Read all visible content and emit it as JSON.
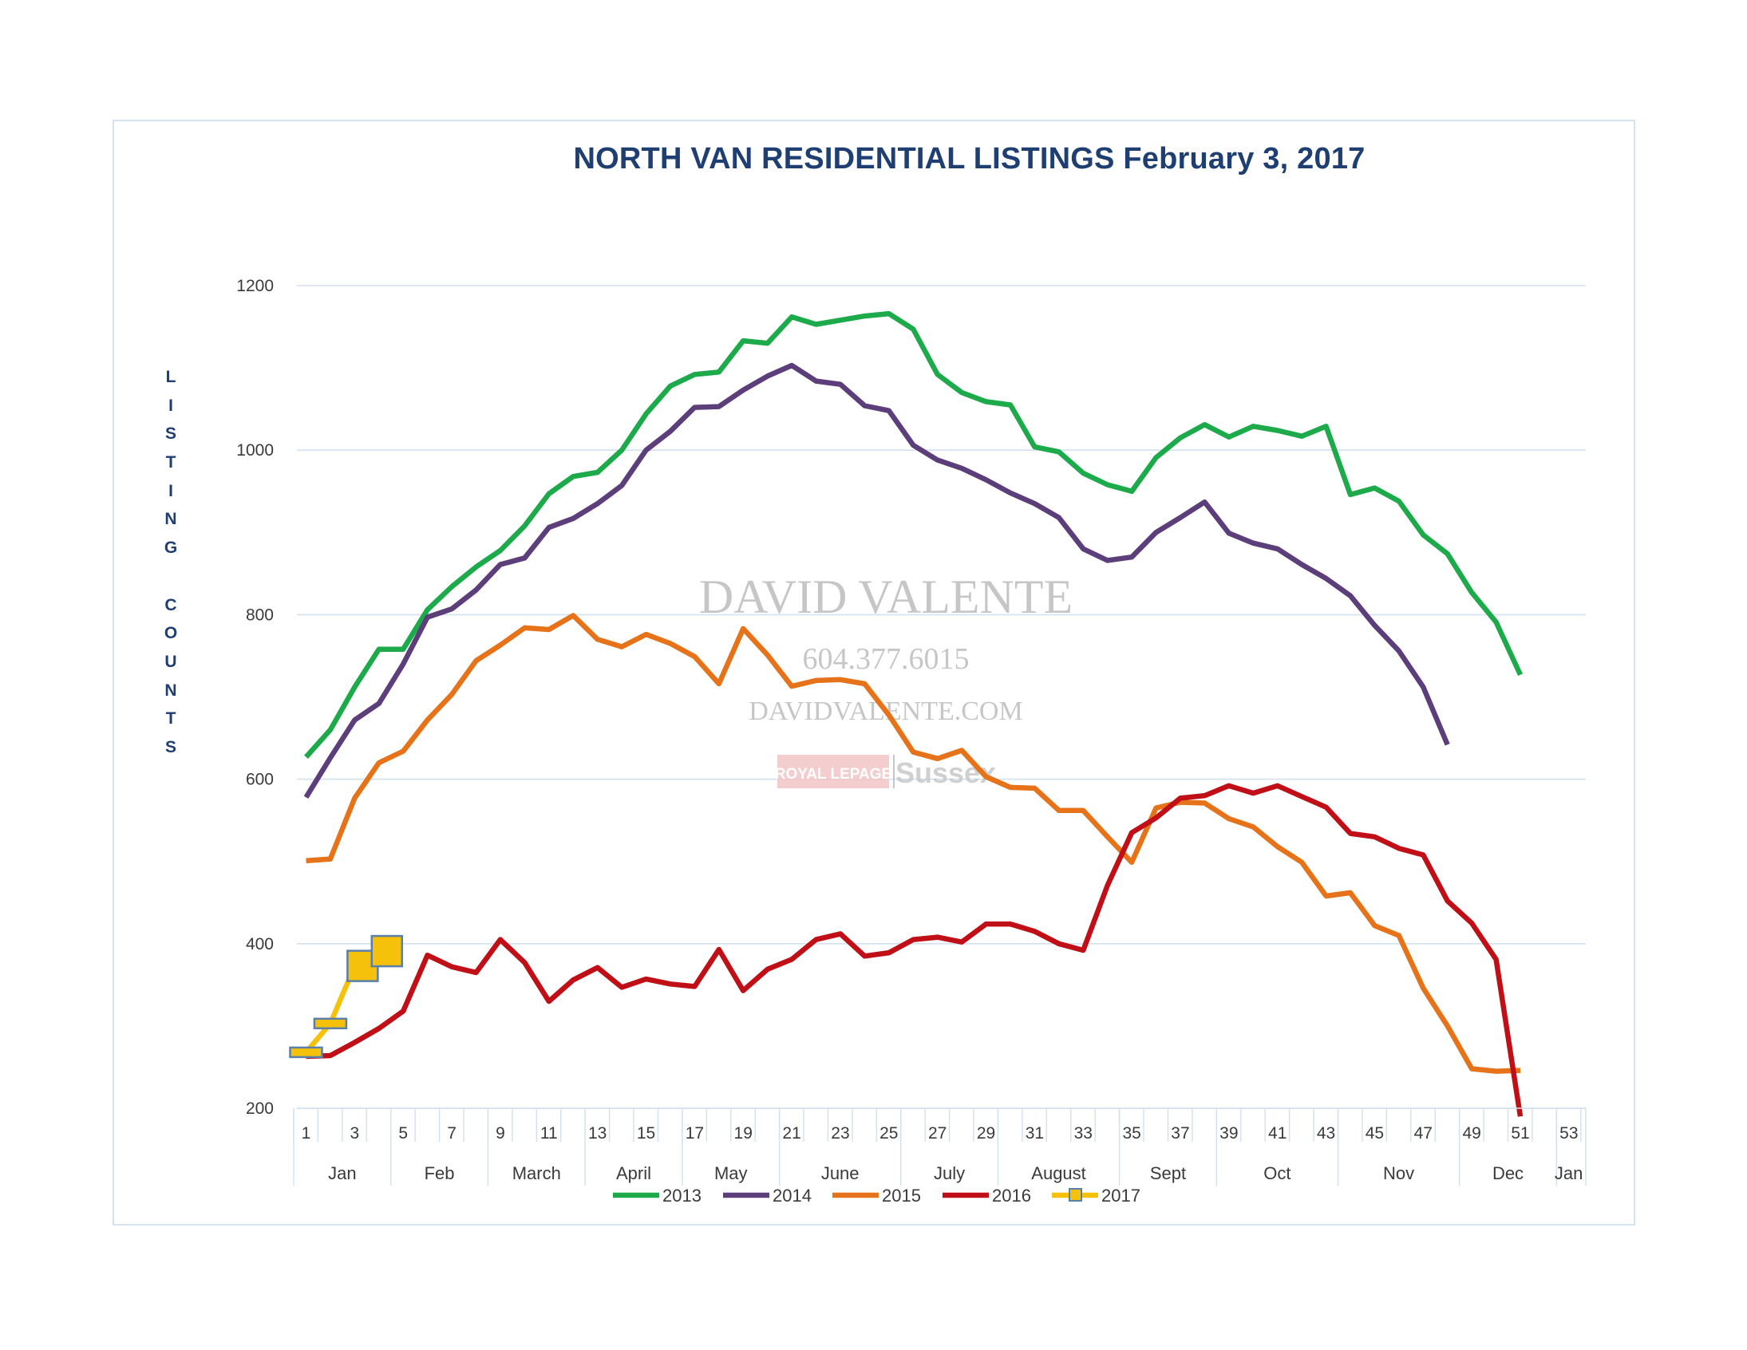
{
  "chart_data": {
    "type": "line",
    "title": "NORTH VAN RESIDENTIAL LISTINGS February 3, 2017",
    "ylabel": "LISTING COUNTS",
    "xlabel": "",
    "ylim": [
      200,
      1200
    ],
    "yticks": [
      200,
      400,
      600,
      800,
      1000,
      1200
    ],
    "xlim": [
      1,
      54
    ],
    "xticks": [
      1,
      3,
      5,
      7,
      9,
      11,
      13,
      15,
      17,
      19,
      21,
      23,
      25,
      27,
      29,
      31,
      33,
      35,
      37,
      39,
      41,
      43,
      45,
      47,
      49,
      51,
      53
    ],
    "months": [
      {
        "label": "Jan",
        "start": 1,
        "end": 5
      },
      {
        "label": "Feb",
        "start": 5,
        "end": 9
      },
      {
        "label": "March",
        "start": 9,
        "end": 13
      },
      {
        "label": "April",
        "start": 13,
        "end": 17
      },
      {
        "label": "May",
        "start": 17,
        "end": 21
      },
      {
        "label": "June",
        "start": 21,
        "end": 26
      },
      {
        "label": "July",
        "start": 26,
        "end": 30
      },
      {
        "label": "August",
        "start": 30,
        "end": 35
      },
      {
        "label": "Sept",
        "start": 35,
        "end": 39
      },
      {
        "label": "Oct",
        "start": 39,
        "end": 44
      },
      {
        "label": "Nov",
        "start": 44,
        "end": 49
      },
      {
        "label": "Dec",
        "start": 49,
        "end": 53
      },
      {
        "label": "Jan",
        "start": 53,
        "end": 54
      }
    ],
    "grid": true,
    "legend_position": "bottom",
    "series": [
      {
        "name": "2013",
        "color": "#1daa4b",
        "marker": "none",
        "values": [
          627,
          660,
          712,
          758,
          758,
          806,
          834,
          858,
          878,
          908,
          947,
          968,
          973,
          1000,
          1044,
          1078,
          1092,
          1095,
          1133,
          1130,
          1162,
          1153,
          1158,
          1163,
          1166,
          1147,
          1092,
          1070,
          1059,
          1055,
          1004,
          998,
          972,
          958,
          950,
          991,
          1015,
          1031,
          1016,
          1029,
          1024,
          1017,
          1029,
          946,
          954,
          938,
          897,
          874,
          827,
          791,
          727
        ]
      },
      {
        "name": "2014",
        "color": "#5c3e7a",
        "marker": "none",
        "values": [
          578,
          626,
          672,
          692,
          740,
          797,
          807,
          830,
          861,
          869,
          906,
          917,
          935,
          957,
          1000,
          1023,
          1052,
          1053,
          1073,
          1090,
          1103,
          1084,
          1080,
          1054,
          1048,
          1006,
          988,
          978,
          964,
          948,
          935,
          918,
          880,
          866,
          870,
          900,
          918,
          937,
          899,
          887,
          880,
          861,
          844,
          823,
          787,
          756,
          712,
          642
        ]
      },
      {
        "name": "2015",
        "color": "#e67319",
        "marker": "none",
        "values": [
          501,
          503,
          577,
          620,
          634,
          672,
          703,
          744,
          763,
          784,
          782,
          799,
          770,
          761,
          776,
          765,
          749,
          716,
          783,
          751,
          713,
          720,
          721,
          716,
          678,
          633,
          625,
          635,
          603,
          590,
          589,
          562,
          562,
          530,
          499,
          565,
          572,
          571,
          552,
          542,
          518,
          499,
          458,
          462,
          422,
          410,
          346,
          300,
          248,
          245,
          246
        ]
      },
      {
        "name": "2016",
        "color": "#c00f16",
        "marker": "none",
        "values": [
          263,
          264,
          280,
          297,
          318,
          386,
          372,
          365,
          405,
          377,
          330,
          356,
          371,
          347,
          357,
          351,
          348,
          393,
          343,
          369,
          381,
          405,
          412,
          385,
          389,
          405,
          408,
          402,
          424,
          424,
          415,
          400,
          392,
          471,
          535,
          553,
          577,
          580,
          592,
          583,
          592,
          579,
          566,
          534,
          530,
          516,
          508,
          452,
          425,
          381,
          190
        ]
      },
      {
        "name": "2017",
        "color": "#f5c10a",
        "marker": "square",
        "values": [
          268,
          303,
          373,
          391
        ]
      }
    ]
  },
  "watermark": {
    "name": "DAVID VALENTE",
    "phone": "604.377.6015",
    "website": "DAVIDVALENTE.COM",
    "brand": "ROYAL LEPAGE",
    "brand2": "Sussex"
  }
}
